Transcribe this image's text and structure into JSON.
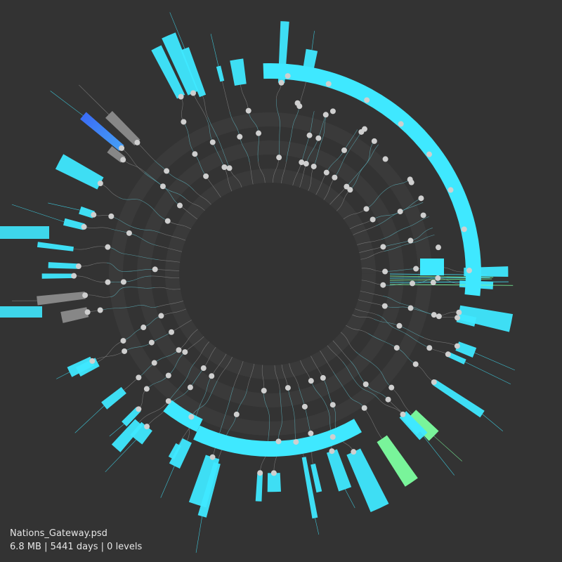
{
  "file": {
    "name": "Nations_Gateway.psd",
    "size": "6.8 MB",
    "age": "5441 days",
    "levels": "0 levels"
  },
  "colors": {
    "background": "#333333",
    "ring_band": "#3a3a3a",
    "node": "#cfcfcf",
    "edge": "#8a8a8a",
    "cyan": "#3fe8ff",
    "green": "#7dffa0",
    "blue": "#3a6bff",
    "gray_block": "#8c8c8c"
  }
}
